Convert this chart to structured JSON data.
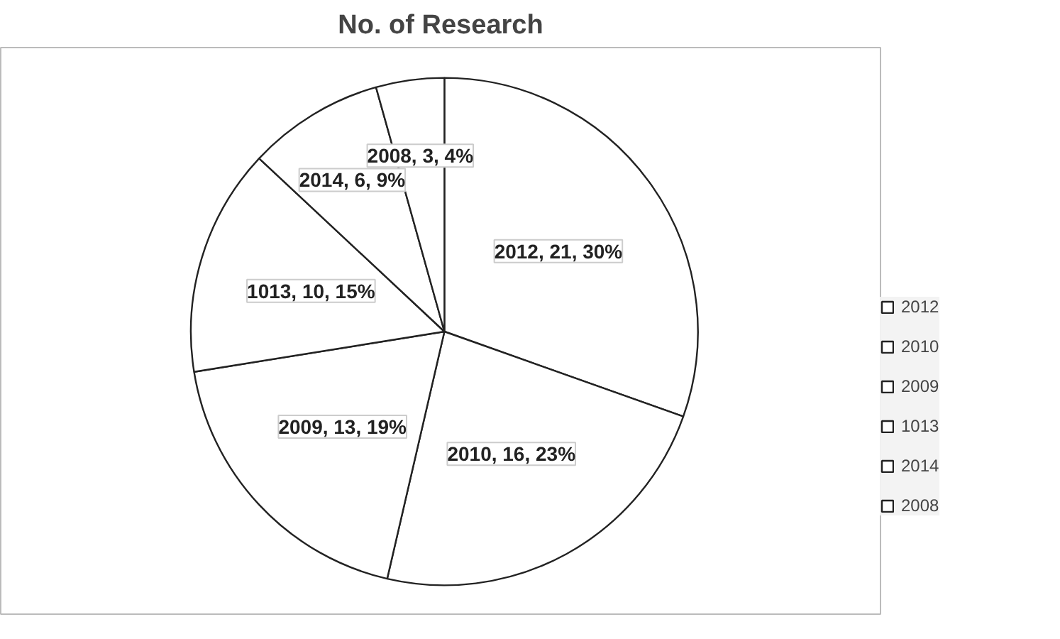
{
  "chart_data": {
    "type": "pie",
    "title": "No. of Research",
    "categories": [
      "2012",
      "2010",
      "2009",
      "1013",
      "2014",
      "2008"
    ],
    "values": [
      21,
      16,
      13,
      10,
      6,
      3
    ],
    "colors": [
      "#ffffff",
      "#ffffff",
      "#ffffff",
      "#ffffff",
      "#ffffff",
      "#ffffff"
    ],
    "value_labels": [
      "2012, 21, 30%",
      "2010, 16, 23%",
      "2009, 13, 19%",
      "1013, 10, 15%",
      "2014, 6, 9%",
      "2008, 3, 4%"
    ],
    "legend": "right"
  }
}
